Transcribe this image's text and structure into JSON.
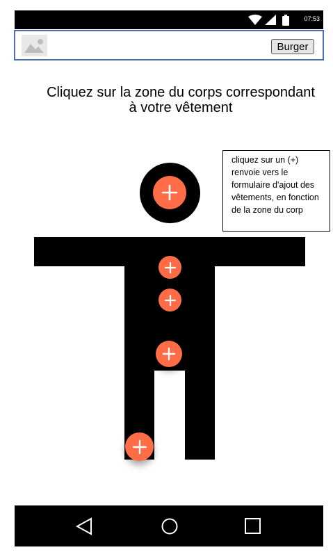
{
  "status_bar": {
    "time": "07:53",
    "icons": [
      "wifi-icon",
      "signal-icon",
      "battery-icon"
    ]
  },
  "top_bar": {
    "logo_icon": "image-placeholder-icon",
    "burger_label": "Burger"
  },
  "main": {
    "title": "Cliquez sur la zone du corps correspondant à votre vêtement",
    "tooltip": "cliquez sur un (+) renvoie vers le formulaire d'ajout des vêtements, en fonction de la zone du corp"
  },
  "body_figure": {
    "zones": [
      "head",
      "chest",
      "belly",
      "waist",
      "foot"
    ],
    "button_color": "#ff6c45",
    "figure_color": "#000000"
  },
  "nav_bar": {
    "icons": [
      "back-icon",
      "home-icon",
      "recents-icon"
    ]
  },
  "colors": {
    "accent": "#ff6c45",
    "top_bar_border": "#4a6fb5"
  }
}
